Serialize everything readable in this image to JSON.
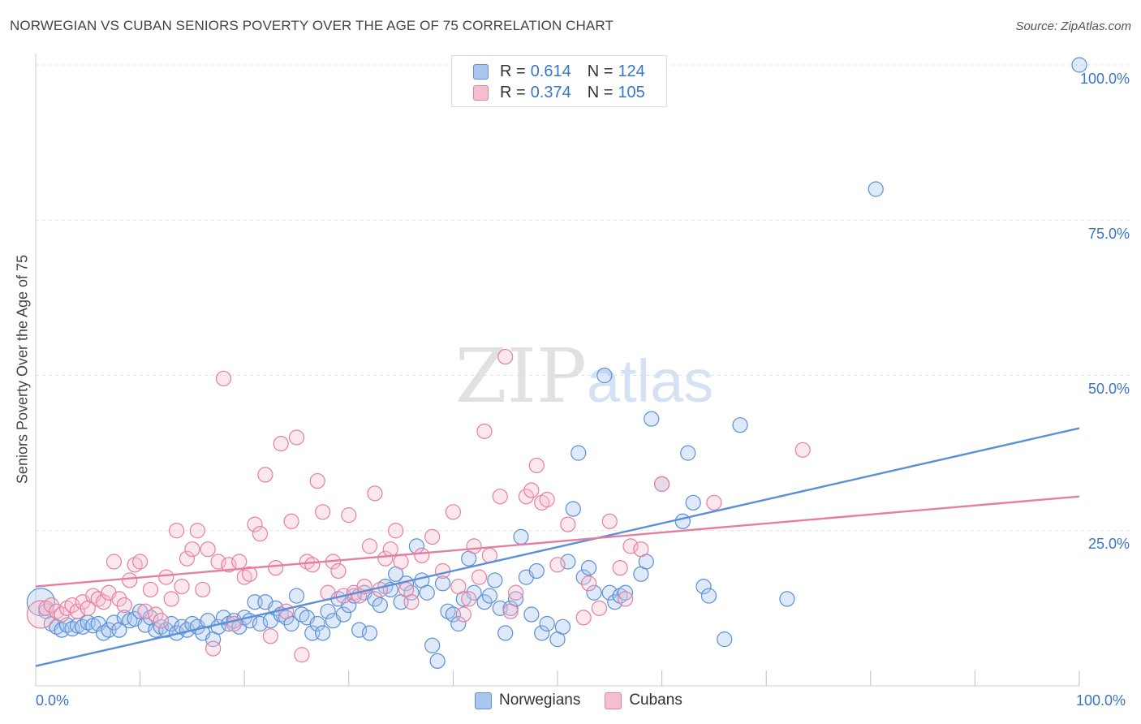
{
  "title": "NORWEGIAN VS CUBAN SENIORS POVERTY OVER THE AGE OF 75 CORRELATION CHART",
  "source": "Source: ZipAtlas.com",
  "watermark": "ZIPatlas",
  "legend": {
    "r_label": "R =",
    "n_label": "N =",
    "rows": [
      {
        "series": "Norwegians",
        "r": "0.614",
        "n": "124",
        "color": "#a9c6ee",
        "stroke": "#5b8fd6"
      },
      {
        "series": "Cubans",
        "r": "0.374",
        "n": "105",
        "color": "#f6bfd0",
        "stroke": "#e47fa0"
      }
    ]
  },
  "chart_data": {
    "type": "scatter",
    "title": "NORWEGIAN VS CUBAN SENIORS POVERTY OVER THE AGE OF 75 CORRELATION CHART",
    "xlabel": "",
    "ylabel": "Seniors Poverty Over the Age of 75",
    "x_tick_labels": [
      "0.0%",
      "100.0%"
    ],
    "y_tick_labels": [
      "25.0%",
      "50.0%",
      "75.0%",
      "100.0%"
    ],
    "xlim": [
      0,
      100
    ],
    "ylim": [
      0,
      100
    ],
    "grid": true,
    "series": [
      {
        "name": "Norwegians",
        "color": "#5b8fd6",
        "trend": {
          "x": [
            0,
            100
          ],
          "y": [
            3.2,
            41.5
          ]
        },
        "points": [
          [
            0.5,
            13.5
          ],
          [
            1.0,
            12.0
          ],
          [
            1.5,
            10.0
          ],
          [
            2.0,
            9.5
          ],
          [
            2.5,
            9.0
          ],
          [
            3.0,
            9.8
          ],
          [
            3.5,
            9.2
          ],
          [
            4.0,
            9.7
          ],
          [
            4.5,
            9.5
          ],
          [
            5.0,
            10.2
          ],
          [
            5.5,
            9.7
          ],
          [
            6.0,
            10.0
          ],
          [
            6.5,
            8.5
          ],
          [
            7.0,
            9.0
          ],
          [
            7.5,
            10.2
          ],
          [
            8.0,
            9.0
          ],
          [
            8.5,
            11.0
          ],
          [
            9.0,
            10.5
          ],
          [
            9.5,
            10.8
          ],
          [
            10.0,
            12.0
          ],
          [
            10.5,
            9.8
          ],
          [
            11.0,
            11.0
          ],
          [
            11.5,
            9.0
          ],
          [
            12.0,
            9.5
          ],
          [
            12.5,
            9.0
          ],
          [
            13.0,
            10.0
          ],
          [
            13.5,
            8.5
          ],
          [
            14.0,
            9.5
          ],
          [
            14.5,
            9.0
          ],
          [
            15.0,
            10.0
          ],
          [
            15.5,
            9.5
          ],
          [
            16.0,
            8.5
          ],
          [
            16.5,
            10.5
          ],
          [
            17.0,
            7.5
          ],
          [
            17.5,
            9.5
          ],
          [
            18.0,
            11.0
          ],
          [
            18.5,
            10.0
          ],
          [
            19.0,
            10.5
          ],
          [
            19.5,
            9.5
          ],
          [
            20.0,
            11.0
          ],
          [
            20.5,
            10.5
          ],
          [
            21.0,
            13.5
          ],
          [
            21.5,
            10.0
          ],
          [
            22.0,
            13.5
          ],
          [
            22.5,
            10.5
          ],
          [
            23.0,
            12.5
          ],
          [
            23.5,
            11.5
          ],
          [
            24.0,
            11.0
          ],
          [
            24.5,
            10.0
          ],
          [
            25.0,
            14.5
          ],
          [
            25.5,
            11.5
          ],
          [
            26.0,
            11.0
          ],
          [
            26.5,
            8.5
          ],
          [
            27.0,
            10.0
          ],
          [
            27.5,
            8.5
          ],
          [
            28.0,
            12.0
          ],
          [
            28.5,
            10.5
          ],
          [
            29.0,
            14.0
          ],
          [
            29.5,
            11.5
          ],
          [
            30.0,
            13.0
          ],
          [
            30.5,
            14.5
          ],
          [
            31.0,
            9.0
          ],
          [
            31.5,
            15.0
          ],
          [
            32.0,
            8.5
          ],
          [
            32.5,
            14.0
          ],
          [
            33.0,
            13.0
          ],
          [
            33.5,
            16.0
          ],
          [
            34.0,
            15.5
          ],
          [
            34.5,
            18.0
          ],
          [
            35.0,
            13.5
          ],
          [
            35.5,
            16.5
          ],
          [
            36.0,
            15.0
          ],
          [
            36.5,
            22.5
          ],
          [
            37.0,
            17.0
          ],
          [
            37.5,
            15.0
          ],
          [
            38.0,
            6.5
          ],
          [
            38.5,
            4.0
          ],
          [
            39.0,
            16.5
          ],
          [
            39.5,
            12.0
          ],
          [
            40.0,
            11.5
          ],
          [
            40.5,
            10.0
          ],
          [
            41.0,
            14.0
          ],
          [
            41.5,
            20.5
          ],
          [
            42.0,
            15.0
          ],
          [
            43.0,
            13.5
          ],
          [
            43.5,
            14.5
          ],
          [
            44.0,
            17.0
          ],
          [
            44.5,
            12.5
          ],
          [
            45.0,
            8.5
          ],
          [
            45.5,
            12.5
          ],
          [
            46.0,
            14.0
          ],
          [
            46.5,
            24.0
          ],
          [
            47.0,
            17.5
          ],
          [
            47.5,
            11.5
          ],
          [
            48.0,
            18.5
          ],
          [
            48.5,
            8.5
          ],
          [
            49.0,
            10.0
          ],
          [
            50.0,
            7.5
          ],
          [
            50.5,
            9.5
          ],
          [
            51.0,
            20.0
          ],
          [
            51.5,
            28.5
          ],
          [
            52.0,
            37.5
          ],
          [
            52.5,
            17.5
          ],
          [
            53.0,
            19.0
          ],
          [
            53.5,
            15.0
          ],
          [
            54.5,
            50.0
          ],
          [
            55.0,
            15.0
          ],
          [
            55.5,
            13.5
          ],
          [
            56.0,
            14.5
          ],
          [
            56.5,
            15.0
          ],
          [
            58.0,
            18.0
          ],
          [
            58.5,
            20.0
          ],
          [
            59.0,
            43.0
          ],
          [
            60.0,
            32.5
          ],
          [
            62.0,
            26.5
          ],
          [
            62.5,
            37.5
          ],
          [
            63.0,
            29.5
          ],
          [
            64.0,
            16.0
          ],
          [
            64.5,
            14.5
          ],
          [
            66.0,
            7.5
          ],
          [
            67.5,
            42.0
          ],
          [
            72.0,
            14.0
          ],
          [
            80.5,
            80.0
          ],
          [
            100.0,
            100.0
          ]
        ]
      },
      {
        "name": "Cubans",
        "color": "#e47fa0",
        "trend": {
          "x": [
            0,
            100
          ],
          "y": [
            16.0,
            30.5
          ]
        },
        "points": [
          [
            0.5,
            11.5
          ],
          [
            1.0,
            12.5
          ],
          [
            1.5,
            13.0
          ],
          [
            2.0,
            12.0
          ],
          [
            2.5,
            11.5
          ],
          [
            3.0,
            12.5
          ],
          [
            3.5,
            13.0
          ],
          [
            4.0,
            12.0
          ],
          [
            4.5,
            13.5
          ],
          [
            5.0,
            12.5
          ],
          [
            5.5,
            14.5
          ],
          [
            6.0,
            14.0
          ],
          [
            6.5,
            13.5
          ],
          [
            7.0,
            15.0
          ],
          [
            7.5,
            20.0
          ],
          [
            8.0,
            14.0
          ],
          [
            8.5,
            13.0
          ],
          [
            9.0,
            17.0
          ],
          [
            9.5,
            19.5
          ],
          [
            10.0,
            20.0
          ],
          [
            10.5,
            12.0
          ],
          [
            11.0,
            15.5
          ],
          [
            11.5,
            11.5
          ],
          [
            12.0,
            10.5
          ],
          [
            12.5,
            17.5
          ],
          [
            13.0,
            14.0
          ],
          [
            13.5,
            25.0
          ],
          [
            14.0,
            16.0
          ],
          [
            14.5,
            20.5
          ],
          [
            15.0,
            22.0
          ],
          [
            15.5,
            25.0
          ],
          [
            16.0,
            15.5
          ],
          [
            16.5,
            22.0
          ],
          [
            17.0,
            6.0
          ],
          [
            17.5,
            20.0
          ],
          [
            18.0,
            49.5
          ],
          [
            18.5,
            19.5
          ],
          [
            19.0,
            10.0
          ],
          [
            19.5,
            20.0
          ],
          [
            20.0,
            17.5
          ],
          [
            20.5,
            18.0
          ],
          [
            21.0,
            26.0
          ],
          [
            21.5,
            24.5
          ],
          [
            22.0,
            34.0
          ],
          [
            22.5,
            8.0
          ],
          [
            23.0,
            19.0
          ],
          [
            23.5,
            39.0
          ],
          [
            24.0,
            12.0
          ],
          [
            24.5,
            26.5
          ],
          [
            25.0,
            40.0
          ],
          [
            25.5,
            5.0
          ],
          [
            26.0,
            20.0
          ],
          [
            26.5,
            19.5
          ],
          [
            27.0,
            33.0
          ],
          [
            27.5,
            28.0
          ],
          [
            28.0,
            15.0
          ],
          [
            28.5,
            20.0
          ],
          [
            29.0,
            18.5
          ],
          [
            29.5,
            14.5
          ],
          [
            30.0,
            27.5
          ],
          [
            30.5,
            15.0
          ],
          [
            31.0,
            14.5
          ],
          [
            31.5,
            16.0
          ],
          [
            32.0,
            22.5
          ],
          [
            32.5,
            31.0
          ],
          [
            33.0,
            15.5
          ],
          [
            33.5,
            20.5
          ],
          [
            34.0,
            22.0
          ],
          [
            34.5,
            25.0
          ],
          [
            35.0,
            20.0
          ],
          [
            35.5,
            15.5
          ],
          [
            36.0,
            13.5
          ],
          [
            37.0,
            21.0
          ],
          [
            38.0,
            24.0
          ],
          [
            39.0,
            18.5
          ],
          [
            40.0,
            28.0
          ],
          [
            40.5,
            16.0
          ],
          [
            41.0,
            11.5
          ],
          [
            41.5,
            14.0
          ],
          [
            42.0,
            22.5
          ],
          [
            42.5,
            17.5
          ],
          [
            43.0,
            41.0
          ],
          [
            43.5,
            21.0
          ],
          [
            44.5,
            30.5
          ],
          [
            45.0,
            53.0
          ],
          [
            45.5,
            12.0
          ],
          [
            46.0,
            15.0
          ],
          [
            47.0,
            30.5
          ],
          [
            47.5,
            31.5
          ],
          [
            48.0,
            35.5
          ],
          [
            48.5,
            29.5
          ],
          [
            49.0,
            30.0
          ],
          [
            50.0,
            19.5
          ],
          [
            51.0,
            26.0
          ],
          [
            52.5,
            11.0
          ],
          [
            53.0,
            16.5
          ],
          [
            54.0,
            12.5
          ],
          [
            55.0,
            26.5
          ],
          [
            56.0,
            19.0
          ],
          [
            56.5,
            14.0
          ],
          [
            57.0,
            22.5
          ],
          [
            58.0,
            22.0
          ],
          [
            60.0,
            32.5
          ],
          [
            65.0,
            29.5
          ],
          [
            73.5,
            38.0
          ]
        ]
      }
    ]
  }
}
